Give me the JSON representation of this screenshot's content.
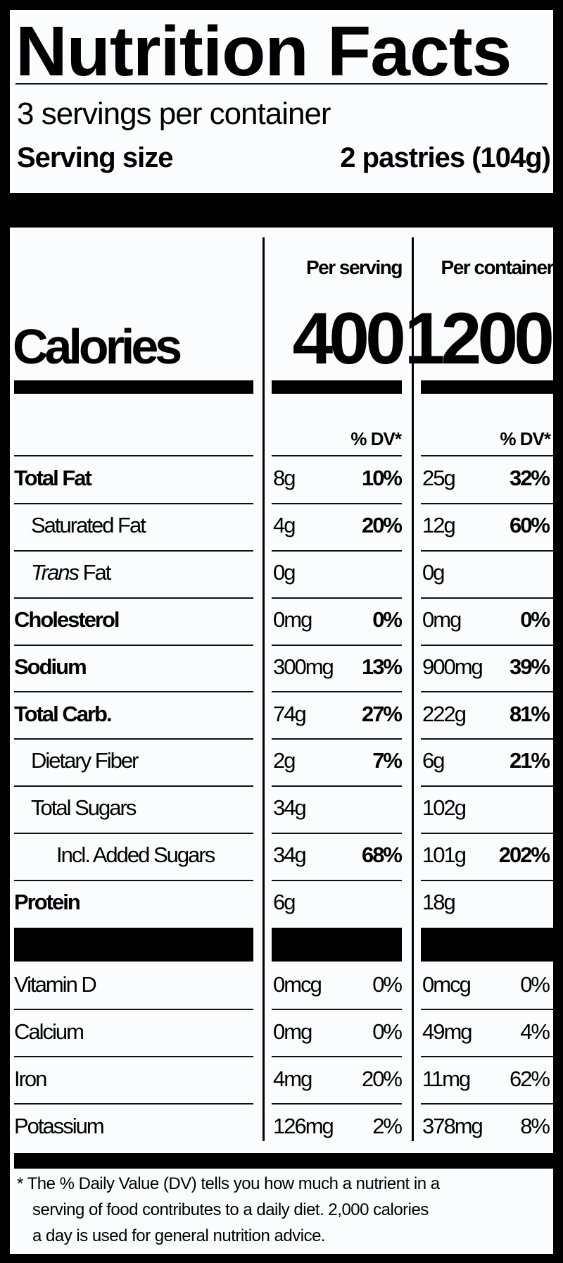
{
  "title": "Nutrition Facts",
  "servings_per_container": "3 servings per container",
  "serving_size": {
    "label": "Serving size",
    "value": "2 pastries (104g)"
  },
  "columns": {
    "per_serving": "Per serving",
    "per_container": "Per container"
  },
  "calories": {
    "label": "Calories",
    "per_serving": "400",
    "per_container": "1200"
  },
  "dv_header": {
    "per_serving": "% DV*",
    "per_container": "% DV*"
  },
  "nutrients": [
    {
      "label": "Total Fat",
      "bold": true,
      "indent": 0,
      "serving_amount": "8g",
      "serving_dv": "10%",
      "container_amount": "25g",
      "container_dv": "32%"
    },
    {
      "label": "Saturated Fat",
      "bold": false,
      "indent": 1,
      "serving_amount": "4g",
      "serving_dv": "20%",
      "container_amount": "12g",
      "container_dv": "60%"
    },
    {
      "label": "Trans Fat",
      "bold": false,
      "indent": 1,
      "serving_amount": "0g",
      "serving_dv": "",
      "container_amount": "0g",
      "container_dv": ""
    },
    {
      "label": "Cholesterol",
      "bold": true,
      "indent": 0,
      "serving_amount": "0mg",
      "serving_dv": "0%",
      "container_amount": "0mg",
      "container_dv": "0%"
    },
    {
      "label": "Sodium",
      "bold": true,
      "indent": 0,
      "serving_amount": "300mg",
      "serving_dv": "13%",
      "container_amount": "900mg",
      "container_dv": "39%"
    },
    {
      "label": "Total Carb.",
      "bold": true,
      "indent": 0,
      "serving_amount": "74g",
      "serving_dv": "27%",
      "container_amount": "222g",
      "container_dv": "81%"
    },
    {
      "label": "Dietary Fiber",
      "bold": false,
      "indent": 1,
      "serving_amount": "2g",
      "serving_dv": "7%",
      "container_amount": "6g",
      "container_dv": "21%"
    },
    {
      "label": "Total Sugars",
      "bold": false,
      "indent": 1,
      "serving_amount": "34g",
      "serving_dv": "",
      "container_amount": "102g",
      "container_dv": ""
    },
    {
      "label": "Incl. Added Sugars",
      "bold": false,
      "indent": 2,
      "serving_amount": "34g",
      "serving_dv": "68%",
      "container_amount": "101g",
      "container_dv": "202%"
    },
    {
      "label": "Protein",
      "bold": true,
      "indent": 0,
      "serving_amount": "6g",
      "serving_dv": "",
      "container_amount": "18g",
      "container_dv": ""
    }
  ],
  "vitamins": [
    {
      "label": "Vitamin D",
      "serving_amount": "0mcg",
      "serving_dv": "0%",
      "container_amount": "0mcg",
      "container_dv": "0%"
    },
    {
      "label": "Calcium",
      "serving_amount": "0mg",
      "serving_dv": "0%",
      "container_amount": "49mg",
      "container_dv": "4%"
    },
    {
      "label": "Iron",
      "serving_amount": "4mg",
      "serving_dv": "20%",
      "container_amount": "11mg",
      "container_dv": "62%"
    },
    {
      "label": "Potassium",
      "serving_amount": "126mg",
      "serving_dv": "2%",
      "container_amount": "378mg",
      "container_dv": "8%"
    }
  ],
  "footnote": {
    "line1": "* The % Daily Value (DV) tells you how much a nutrient in a",
    "line2": "serving of food contributes to a daily diet. 2,000 calories",
    "line3": "a day is used for general nutrition advice."
  }
}
